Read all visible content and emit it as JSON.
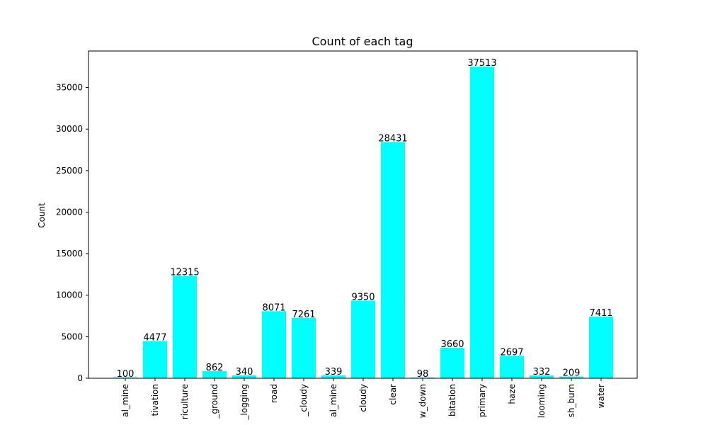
{
  "chart_data": {
    "type": "bar",
    "title": "Count of each tag",
    "xlabel": "",
    "ylabel": "Count",
    "ylim": [
      0,
      39400
    ],
    "yticks": [
      0,
      5000,
      10000,
      15000,
      20000,
      25000,
      30000,
      35000
    ],
    "grid": false,
    "bar_color": "#00ffff",
    "categories": [
      "al_mine",
      "tivation",
      "riculture",
      "_ground",
      "_logging",
      "road",
      "_cloudy",
      "al_mine",
      "cloudy",
      "clear",
      "w_down",
      "bitation",
      "primary",
      "haze",
      "looming",
      "sh_burn",
      "water"
    ],
    "values": [
      100,
      4477,
      12315,
      862,
      340,
      8071,
      7261,
      339,
      9350,
      28431,
      98,
      3660,
      37513,
      2697,
      332,
      209,
      7411
    ]
  }
}
